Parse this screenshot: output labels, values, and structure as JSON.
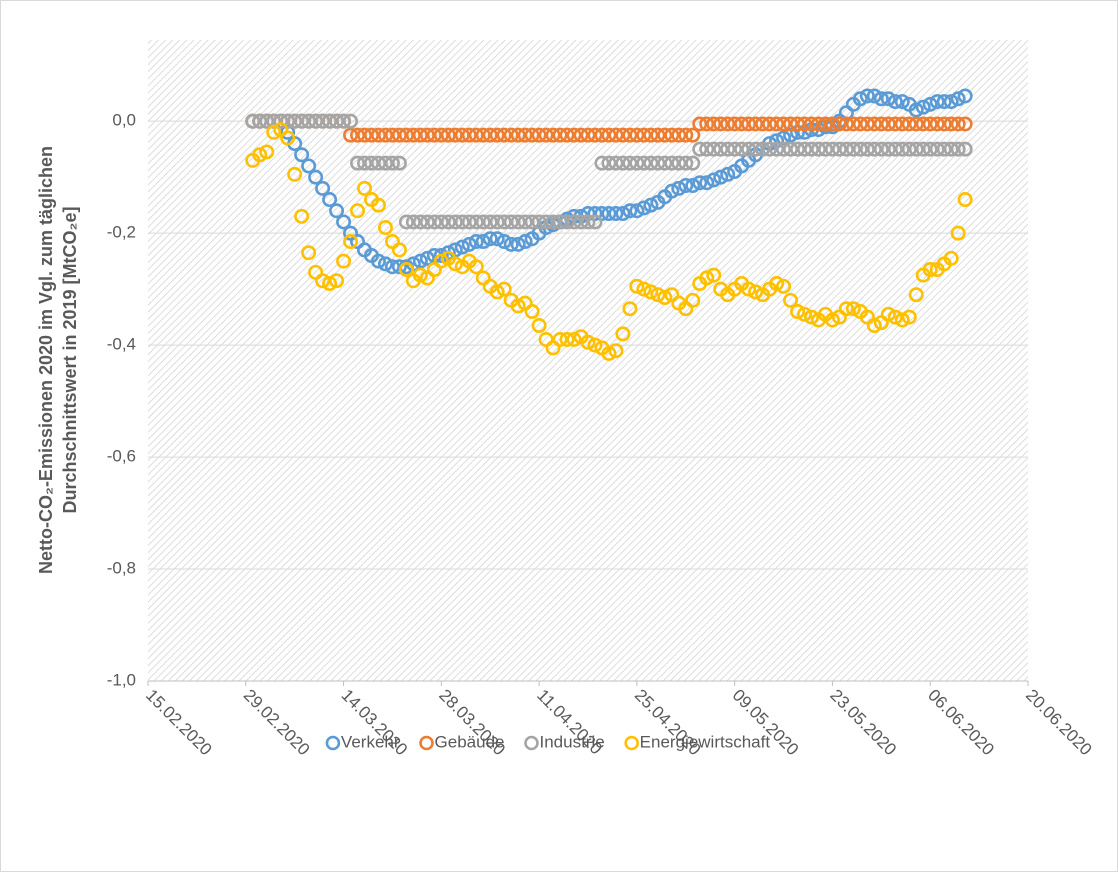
{
  "chart_data": {
    "type": "scatter",
    "y_label": [
      "Netto-CO₂-Emissionen 2020 im Vgl. zum täglichen",
      "Durchschnittswert in 2019 [MtCO₂e]"
    ],
    "xlim": [
      "15.02.2020",
      "20.06.2020"
    ],
    "xticks": [
      "15.02.2020",
      "29.02.2020",
      "14.03.2020",
      "28.03.2020",
      "11.04.2020",
      "25.04.2020",
      "09.05.2020",
      "23.05.2020",
      "06.06.2020",
      "20.06.2020"
    ],
    "ylim": [
      -1,
      0.145
    ],
    "yticks": [
      {
        "value": -1,
        "label": "-1,0"
      },
      {
        "value": -0.8,
        "label": "-0,8"
      },
      {
        "value": -0.6,
        "label": "-0,6"
      },
      {
        "value": -0.4,
        "label": "-0,4"
      },
      {
        "value": -0.2,
        "label": "-0,2"
      },
      {
        "value": 0,
        "label": "0,0"
      }
    ],
    "grid": true,
    "legend": "bottom",
    "x": [
      "01.03.2020",
      "02.03.2020",
      "03.03.2020",
      "04.03.2020",
      "05.03.2020",
      "06.03.2020",
      "07.03.2020",
      "08.03.2020",
      "09.03.2020",
      "10.03.2020",
      "11.03.2020",
      "12.03.2020",
      "13.03.2020",
      "14.03.2020",
      "15.03.2020",
      "16.03.2020",
      "17.03.2020",
      "18.03.2020",
      "19.03.2020",
      "20.03.2020",
      "21.03.2020",
      "22.03.2020",
      "23.03.2020",
      "24.03.2020",
      "25.03.2020",
      "26.03.2020",
      "27.03.2020",
      "28.03.2020",
      "29.03.2020",
      "30.03.2020",
      "31.03.2020",
      "01.04.2020",
      "02.04.2020",
      "03.04.2020",
      "04.04.2020",
      "05.04.2020",
      "06.04.2020",
      "07.04.2020",
      "08.04.2020",
      "09.04.2020",
      "10.04.2020",
      "11.04.2020",
      "12.04.2020",
      "13.04.2020",
      "14.04.2020",
      "15.04.2020",
      "16.04.2020",
      "17.04.2020",
      "18.04.2020",
      "19.04.2020",
      "20.04.2020",
      "21.04.2020",
      "22.04.2020",
      "23.04.2020",
      "24.04.2020",
      "25.04.2020",
      "26.04.2020",
      "27.04.2020",
      "28.04.2020",
      "29.04.2020",
      "30.04.2020",
      "01.05.2020",
      "02.05.2020",
      "03.05.2020",
      "04.05.2020",
      "05.05.2020",
      "06.05.2020",
      "07.05.2020",
      "08.05.2020",
      "09.05.2020",
      "10.05.2020",
      "11.05.2020",
      "12.05.2020",
      "13.05.2020",
      "14.05.2020",
      "15.05.2020",
      "16.05.2020",
      "17.05.2020",
      "18.05.2020",
      "19.05.2020",
      "20.05.2020",
      "21.05.2020",
      "22.05.2020",
      "23.05.2020",
      "24.05.2020",
      "25.05.2020",
      "26.05.2020",
      "27.05.2020",
      "28.05.2020",
      "29.05.2020",
      "30.05.2020",
      "31.05.2020",
      "01.06.2020",
      "02.06.2020",
      "03.06.2020",
      "04.06.2020",
      "05.06.2020",
      "06.06.2020",
      "07.06.2020",
      "08.06.2020",
      "09.06.2020",
      "10.06.2020",
      "11.06.2020"
    ],
    "series": [
      {
        "name": "Verkehr",
        "color": "#5b9bd5",
        "values": [
          0,
          0,
          0,
          0,
          0,
          -0.02,
          -0.04,
          -0.06,
          -0.08,
          -0.1,
          -0.12,
          -0.14,
          -0.16,
          -0.18,
          -0.2,
          -0.215,
          -0.23,
          -0.24,
          -0.25,
          -0.255,
          -0.26,
          -0.26,
          -0.26,
          -0.255,
          -0.25,
          -0.245,
          -0.24,
          -0.24,
          -0.235,
          -0.23,
          -0.225,
          -0.22,
          -0.215,
          -0.215,
          -0.21,
          -0.21,
          -0.215,
          -0.22,
          -0.22,
          -0.215,
          -0.21,
          -0.2,
          -0.19,
          -0.185,
          -0.18,
          -0.175,
          -0.17,
          -0.17,
          -0.165,
          -0.165,
          -0.165,
          -0.165,
          -0.165,
          -0.165,
          -0.16,
          -0.16,
          -0.155,
          -0.15,
          -0.145,
          -0.135,
          -0.125,
          -0.12,
          -0.115,
          -0.115,
          -0.11,
          -0.11,
          -0.105,
          -0.1,
          -0.095,
          -0.09,
          -0.08,
          -0.07,
          -0.06,
          -0.05,
          -0.04,
          -0.035,
          -0.03,
          -0.025,
          -0.02,
          -0.02,
          -0.015,
          -0.015,
          -0.01,
          -0.01,
          0,
          0.015,
          0.03,
          0.04,
          0.045,
          0.045,
          0.04,
          0.04,
          0.035,
          0.035,
          0.03,
          0.02,
          0.025,
          0.03,
          0.035,
          0.035,
          0.035,
          0.04,
          0.045
        ]
      },
      {
        "name": "Gebäude",
        "color": "#ed7d31",
        "values": [
          0,
          0,
          0,
          0,
          0,
          0,
          0,
          0,
          0,
          0,
          0,
          0,
          0,
          0,
          -0.025,
          -0.025,
          -0.025,
          -0.025,
          -0.025,
          -0.025,
          -0.025,
          -0.025,
          -0.025,
          -0.025,
          -0.025,
          -0.025,
          -0.025,
          -0.025,
          -0.025,
          -0.025,
          -0.025,
          -0.025,
          -0.025,
          -0.025,
          -0.025,
          -0.025,
          -0.025,
          -0.025,
          -0.025,
          -0.025,
          -0.025,
          -0.025,
          -0.025,
          -0.025,
          -0.025,
          -0.025,
          -0.025,
          -0.025,
          -0.025,
          -0.025,
          -0.025,
          -0.025,
          -0.025,
          -0.025,
          -0.025,
          -0.025,
          -0.025,
          -0.025,
          -0.025,
          -0.025,
          -0.025,
          -0.025,
          -0.025,
          -0.025,
          -0.005,
          -0.005,
          -0.005,
          -0.005,
          -0.005,
          -0.005,
          -0.005,
          -0.005,
          -0.005,
          -0.005,
          -0.005,
          -0.005,
          -0.005,
          -0.005,
          -0.005,
          -0.005,
          -0.005,
          -0.005,
          -0.005,
          -0.005,
          -0.005,
          -0.005,
          -0.005,
          -0.005,
          -0.005,
          -0.005,
          -0.005,
          -0.005,
          -0.005,
          -0.005,
          -0.005,
          -0.005,
          -0.005,
          -0.005,
          -0.005,
          -0.005,
          -0.005,
          -0.005,
          -0.005
        ]
      },
      {
        "name": "Industrie",
        "color": "#a5a5a5",
        "values": [
          0,
          0,
          0,
          0,
          0,
          0,
          0,
          0,
          0,
          0,
          0,
          0,
          0,
          0,
          0,
          -0.075,
          -0.075,
          -0.075,
          -0.075,
          -0.075,
          -0.075,
          -0.075,
          -0.18,
          -0.18,
          -0.18,
          -0.18,
          -0.18,
          -0.18,
          -0.18,
          -0.18,
          -0.18,
          -0.18,
          -0.18,
          -0.18,
          -0.18,
          -0.18,
          -0.18,
          -0.18,
          -0.18,
          -0.18,
          -0.18,
          -0.18,
          -0.18,
          -0.18,
          -0.18,
          -0.18,
          -0.18,
          -0.18,
          -0.18,
          -0.18,
          -0.075,
          -0.075,
          -0.075,
          -0.075,
          -0.075,
          -0.075,
          -0.075,
          -0.075,
          -0.075,
          -0.075,
          -0.075,
          -0.075,
          -0.075,
          -0.075,
          -0.05,
          -0.05,
          -0.05,
          -0.05,
          -0.05,
          -0.05,
          -0.05,
          -0.05,
          -0.05,
          -0.05,
          -0.05,
          -0.05,
          -0.05,
          -0.05,
          -0.05,
          -0.05,
          -0.05,
          -0.05,
          -0.05,
          -0.05,
          -0.05,
          -0.05,
          -0.05,
          -0.05,
          -0.05,
          -0.05,
          -0.05,
          -0.05,
          -0.05,
          -0.05,
          -0.05,
          -0.05,
          -0.05,
          -0.05,
          -0.05,
          -0.05,
          -0.05,
          -0.05,
          -0.05
        ]
      },
      {
        "name": "Energiewirtschaft",
        "color": "#ffc000",
        "values": [
          -0.07,
          -0.06,
          -0.055,
          -0.02,
          -0.015,
          -0.03,
          -0.095,
          -0.17,
          -0.235,
          -0.27,
          -0.285,
          -0.29,
          -0.285,
          -0.25,
          -0.215,
          -0.16,
          -0.12,
          -0.14,
          -0.15,
          -0.19,
          -0.215,
          -0.23,
          -0.265,
          -0.285,
          -0.275,
          -0.28,
          -0.265,
          -0.25,
          -0.245,
          -0.255,
          -0.26,
          -0.25,
          -0.26,
          -0.28,
          -0.295,
          -0.305,
          -0.3,
          -0.32,
          -0.33,
          -0.325,
          -0.34,
          -0.365,
          -0.39,
          -0.405,
          -0.39,
          -0.39,
          -0.39,
          -0.385,
          -0.395,
          -0.4,
          -0.405,
          -0.415,
          -0.41,
          -0.38,
          -0.335,
          -0.295,
          -0.3,
          -0.305,
          -0.31,
          -0.315,
          -0.31,
          -0.325,
          -0.335,
          -0.32,
          -0.29,
          -0.28,
          -0.275,
          -0.3,
          -0.31,
          -0.3,
          -0.29,
          -0.3,
          -0.305,
          -0.31,
          -0.3,
          -0.29,
          -0.295,
          -0.32,
          -0.34,
          -0.345,
          -0.35,
          -0.355,
          -0.345,
          -0.355,
          -0.35,
          -0.335,
          -0.335,
          -0.34,
          -0.35,
          -0.365,
          -0.36,
          -0.345,
          -0.35,
          -0.355,
          -0.35,
          -0.31,
          -0.275,
          -0.265,
          -0.265,
          -0.255,
          -0.245,
          -0.2,
          -0.14
        ]
      }
    ]
  }
}
